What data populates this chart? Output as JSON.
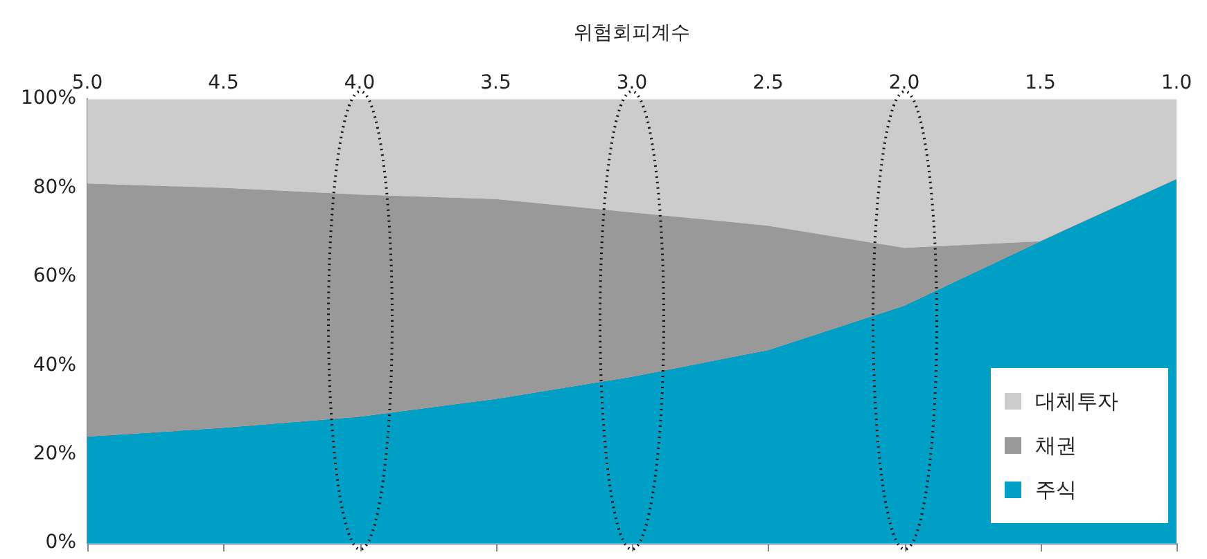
{
  "chart_data": {
    "type": "area",
    "stacked": true,
    "xlabel": "위험회피계수",
    "x": [
      5.0,
      4.5,
      4.0,
      3.5,
      3.0,
      2.5,
      2.0,
      1.5,
      1.0
    ],
    "xlim": [
      5.0,
      1.0
    ],
    "xticks": [
      {
        "value": 5.0,
        "label": "5.0"
      },
      {
        "value": 4.5,
        "label": "4.5"
      },
      {
        "value": 4.0,
        "label": "4.0"
      },
      {
        "value": 3.5,
        "label": "3.5"
      },
      {
        "value": 3.0,
        "label": "3.0"
      },
      {
        "value": 2.5,
        "label": "2.5"
      },
      {
        "value": 2.0,
        "label": "2.0"
      },
      {
        "value": 1.5,
        "label": "1.5"
      },
      {
        "value": 1.0,
        "label": "1.0"
      }
    ],
    "ylim": [
      0,
      100
    ],
    "yticks": [
      {
        "value": 0,
        "label": "0%"
      },
      {
        "value": 20,
        "label": "20%"
      },
      {
        "value": 40,
        "label": "40%"
      },
      {
        "value": 60,
        "label": "60%"
      },
      {
        "value": 80,
        "label": "80%"
      },
      {
        "value": 100,
        "label": "100%"
      }
    ],
    "series": [
      {
        "name": "주식",
        "color": "#00a0c6",
        "values": [
          24,
          26,
          28.5,
          32.5,
          37.5,
          43.5,
          53.5,
          68,
          82
        ]
      },
      {
        "name": "채권",
        "color": "#999999",
        "values": [
          57,
          54,
          50,
          45,
          37,
          28,
          13,
          0,
          0
        ]
      },
      {
        "name": "대체투자",
        "color": "#cccccc",
        "values": [
          19,
          20,
          21.5,
          22.5,
          25.5,
          28.5,
          33.5,
          32,
          18
        ]
      }
    ],
    "grid": false,
    "legend": "bottom right"
  }
}
